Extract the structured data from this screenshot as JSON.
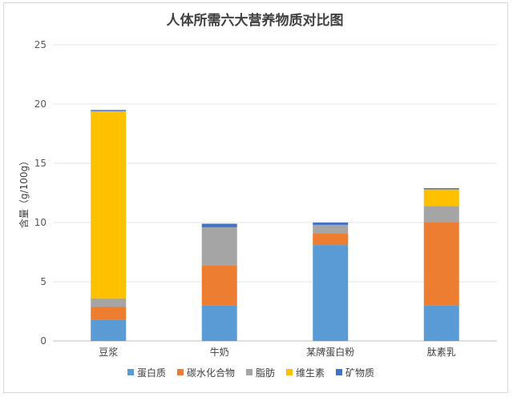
{
  "chart_data": {
    "type": "bar",
    "stacked": true,
    "title": "人体所需六大营养物质对比图",
    "xlabel": "",
    "ylabel": "含量（g/100g）",
    "ylim": [
      0,
      25
    ],
    "yticks": [
      0,
      5,
      10,
      15,
      20,
      25
    ],
    "grid": true,
    "legend_position": "bottom",
    "categories": [
      "豆浆",
      "牛奶",
      "某牌蛋白粉",
      "肽素乳"
    ],
    "series": [
      {
        "name": "蛋白质",
        "color": "#5b9bd5",
        "values": [
          1.8,
          3.0,
          8.1,
          3.0
        ]
      },
      {
        "name": "碳水化合物",
        "color": "#ed7d31",
        "values": [
          1.1,
          3.4,
          1.0,
          7.0
        ]
      },
      {
        "name": "脂肪",
        "color": "#a5a5a5",
        "values": [
          0.7,
          3.2,
          0.7,
          1.4
        ]
      },
      {
        "name": "维生素",
        "color": "#ffc000",
        "values": [
          15.8,
          0.0,
          0.0,
          1.4
        ]
      },
      {
        "name": "矿物质",
        "color": "#4472c4",
        "values": [
          0.1,
          0.3,
          0.2,
          0.1
        ]
      }
    ]
  }
}
